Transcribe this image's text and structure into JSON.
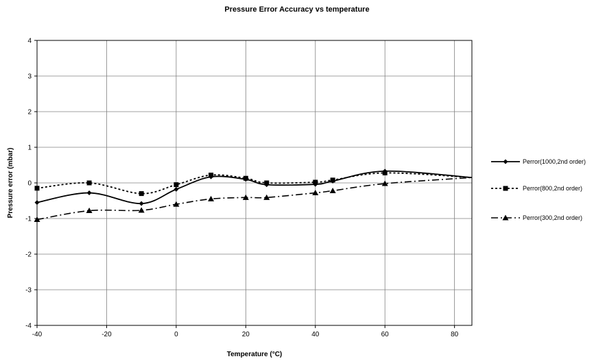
{
  "chart_data": {
    "type": "line",
    "title": "Pressure Error Accuracy vs temperature",
    "xlabel": "Temperature (°C)",
    "ylabel": "Pressure error (mbar)",
    "xlim": [
      -40,
      85
    ],
    "ylim": [
      -4,
      4
    ],
    "xticks": [
      -40,
      -20,
      0,
      20,
      40,
      60,
      80
    ],
    "yticks": [
      -4,
      -3,
      -2,
      -1,
      0,
      1,
      2,
      3,
      4
    ],
    "grid": true,
    "legend_position": "right",
    "series": [
      {
        "name": "Perror(1000,2nd order)",
        "marker": "diamond",
        "dash": "solid",
        "color": "#000000",
        "points": [
          [
            -40,
            -0.55
          ],
          [
            -25,
            -0.28
          ],
          [
            -10,
            -0.58
          ],
          [
            0,
            -0.18
          ],
          [
            10,
            0.17
          ],
          [
            20,
            0.1
          ],
          [
            26,
            -0.05
          ],
          [
            40,
            -0.04
          ],
          [
            45,
            0.05
          ],
          [
            60,
            0.33
          ],
          [
            85,
            0.15
          ]
        ]
      },
      {
        "name": "Perror(800,2nd order)",
        "marker": "square",
        "dash": "dotted",
        "color": "#000000",
        "points": [
          [
            -40,
            -0.15
          ],
          [
            -25,
            0.0
          ],
          [
            -10,
            -0.3
          ],
          [
            0,
            -0.05
          ],
          [
            10,
            0.22
          ],
          [
            20,
            0.13
          ],
          [
            26,
            0.0
          ],
          [
            40,
            0.02
          ],
          [
            45,
            0.08
          ],
          [
            60,
            0.28
          ],
          [
            85,
            0.15
          ]
        ]
      },
      {
        "name": "Perror(300,2nd order)",
        "marker": "triangle",
        "dash": "dashdot",
        "color": "#000000",
        "points": [
          [
            -40,
            -1.03
          ],
          [
            -25,
            -0.78
          ],
          [
            -10,
            -0.77
          ],
          [
            0,
            -0.6
          ],
          [
            10,
            -0.45
          ],
          [
            20,
            -0.41
          ],
          [
            26,
            -0.41
          ],
          [
            40,
            -0.28
          ],
          [
            45,
            -0.22
          ],
          [
            60,
            -0.02
          ],
          [
            85,
            0.15
          ]
        ]
      }
    ]
  }
}
